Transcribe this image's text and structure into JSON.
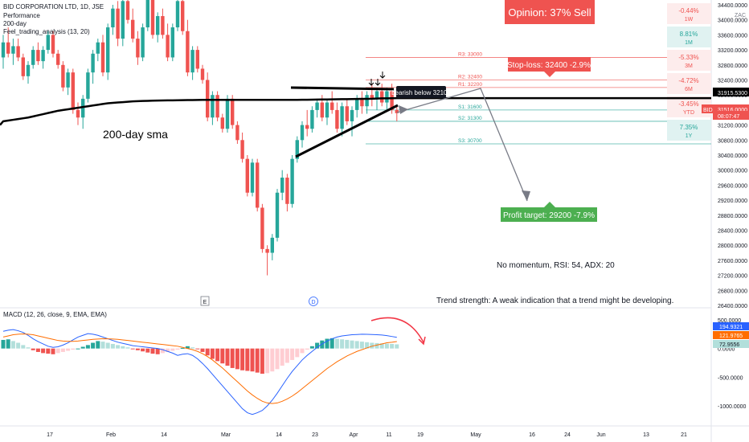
{
  "legend": {
    "symbol": "BID CORPORATION LTD, 1D, JSE",
    "items": [
      "Performance",
      "200-day",
      "Feel_trading_analysis (13, 20)"
    ]
  },
  "currency": "ZAC",
  "opinion": "Opinion: 37% Sell",
  "annotations": {
    "sma_label": "200-day sma",
    "stop_loss": "Stop-loss: 32400 -2.9%",
    "profit_target": "Profit target: 29200 -7.9%",
    "momentum": "No momentum, RSI: 54, ADX: 20",
    "trend_strength": "Trend strength: A weak indication that a trend might be developing.",
    "bearish": "bearish below 32100",
    "e_marker": "E",
    "d_marker": "D"
  },
  "levels": [
    {
      "label": "R3: 33000",
      "value": 33000,
      "color": "#ef5350"
    },
    {
      "label": "R2: 32400",
      "value": 32400,
      "color": "#ef5350"
    },
    {
      "label": "R1: 32200",
      "value": 32200,
      "color": "#ef5350"
    },
    {
      "label": "S1: 31600",
      "value": 31600,
      "color": "#26a69a"
    },
    {
      "label": "S2: 31300",
      "value": 31300,
      "color": "#26a69a"
    },
    {
      "label": "S3: 30700",
      "value": 30700,
      "color": "#26a69a"
    }
  ],
  "performance": [
    {
      "value": "-0.44%",
      "period": "1W",
      "positive": false
    },
    {
      "value": "8.81%",
      "period": "1M",
      "positive": true
    },
    {
      "value": "-5.33%",
      "period": "3M",
      "positive": false
    },
    {
      "value": "-4.72%",
      "period": "6M",
      "positive": false
    },
    {
      "value": "-3.45%",
      "period": "YTD",
      "positive": false
    },
    {
      "value": "7.35%",
      "period": "1Y",
      "positive": true
    }
  ],
  "price_labels": [
    {
      "label": "31915.5300",
      "color": "#000000"
    },
    {
      "label": "31516.0000",
      "color": "#ef5350"
    },
    {
      "label": "BID",
      "color": "#ef5350"
    },
    {
      "label": "08:07:47",
      "color": "#ef5350"
    }
  ],
  "macd": {
    "title": "MACD (12, 26, close, 9, EMA, EMA)",
    "labels": [
      {
        "label": "194.9321",
        "color": "#2962ff"
      },
      {
        "label": "121.9765",
        "color": "#ff6d00"
      },
      {
        "label": "72.9556",
        "color": "#b2dfdb"
      }
    ],
    "yaxis": [
      {
        "label": "500.0000",
        "value": 500
      },
      {
        "label": "0.0000",
        "value": 0
      },
      {
        "label": "-500.0000",
        "value": -500
      },
      {
        "label": "-1000.0000",
        "value": -1000
      }
    ]
  },
  "chart_data": {
    "type": "candlestick",
    "price_axis": [
      34400,
      34000,
      33600,
      33200,
      32800,
      32400,
      32000,
      31600,
      31200,
      30800,
      30400,
      30000,
      29600,
      29200,
      28800,
      28400,
      28000,
      27600,
      27200,
      26800,
      26400
    ],
    "price_axis_labels": [
      "34400.0000",
      "34000.0000",
      "33600.0000",
      "33200.0000",
      "32800.0000",
      "32400.0000",
      "32000.0000",
      "31600.0000",
      "31200.0000",
      "30800.0000",
      "30400.0000",
      "30000.0000",
      "29600.0000",
      "29200.0000",
      "28800.0000",
      "28400.0000",
      "28000.0000",
      "27600.0000",
      "27200.0000",
      "26800.0000",
      "26400.0000"
    ],
    "x_ticks": [
      "17",
      "Feb",
      "14",
      "Mar",
      "14",
      "23",
      "Apr",
      "11",
      "19",
      "May",
      "16",
      "24",
      "Jun",
      "13",
      "21"
    ],
    "candles": [
      [
        33000,
        33600,
        32700,
        33400
      ],
      [
        33400,
        33800,
        33000,
        33100
      ],
      [
        33100,
        33500,
        32800,
        33300
      ],
      [
        33300,
        33500,
        32900,
        33000
      ],
      [
        33000,
        33100,
        32400,
        32500
      ],
      [
        32500,
        32900,
        32300,
        32800
      ],
      [
        32800,
        33300,
        32700,
        33200
      ],
      [
        33200,
        33400,
        32800,
        32900
      ],
      [
        32900,
        33300,
        32700,
        33200
      ],
      [
        33200,
        33700,
        33100,
        33600
      ],
      [
        33600,
        33700,
        33000,
        33100
      ],
      [
        33100,
        33200,
        32700,
        32800
      ],
      [
        32800,
        32900,
        32100,
        32200
      ],
      [
        32200,
        32700,
        32000,
        32600
      ],
      [
        32600,
        32700,
        31500,
        31600
      ],
      [
        31600,
        31800,
        31200,
        31400
      ],
      [
        31400,
        32000,
        31100,
        31900
      ],
      [
        31900,
        32700,
        31800,
        32600
      ],
      [
        32600,
        33200,
        32300,
        33100
      ],
      [
        33100,
        33500,
        32900,
        33400
      ],
      [
        33400,
        33600,
        32500,
        32600
      ],
      [
        32600,
        33900,
        32400,
        33800
      ],
      [
        33800,
        34400,
        33600,
        34300
      ],
      [
        34300,
        34500,
        33300,
        33500
      ],
      [
        33500,
        34700,
        33300,
        34500
      ],
      [
        34500,
        34800,
        33900,
        34000
      ],
      [
        34000,
        34300,
        33400,
        33500
      ],
      [
        33500,
        33700,
        32800,
        33000
      ],
      [
        33000,
        33900,
        32900,
        33800
      ],
      [
        33800,
        34700,
        33700,
        34600
      ],
      [
        34600,
        34800,
        33500,
        33600
      ],
      [
        33600,
        34200,
        33400,
        34100
      ],
      [
        34100,
        34300,
        33500,
        33600
      ],
      [
        33600,
        33900,
        32900,
        33000
      ],
      [
        33000,
        33900,
        32900,
        33800
      ],
      [
        33800,
        34600,
        33700,
        34500
      ],
      [
        34500,
        34700,
        33600,
        33700
      ],
      [
        33700,
        34000,
        32500,
        32600
      ],
      [
        32600,
        33300,
        32400,
        33200
      ],
      [
        33200,
        33300,
        32600,
        32700
      ],
      [
        32700,
        32800,
        32300,
        32400
      ],
      [
        32400,
        32600,
        31300,
        31400
      ],
      [
        31400,
        32100,
        31200,
        32000
      ],
      [
        32000,
        32100,
        31300,
        31400
      ],
      [
        31400,
        31500,
        31000,
        31100
      ],
      [
        31100,
        32000,
        31000,
        31900
      ],
      [
        31900,
        32000,
        31100,
        31200
      ],
      [
        31200,
        31300,
        30700,
        30800
      ],
      [
        30800,
        31000,
        30200,
        30300
      ],
      [
        30300,
        30400,
        29300,
        29400
      ],
      [
        29400,
        30300,
        29300,
        30200
      ],
      [
        30200,
        30300,
        28900,
        29000
      ],
      [
        29000,
        29100,
        27800,
        27900
      ],
      [
        27900,
        28000,
        27200,
        27800
      ],
      [
        27800,
        28300,
        27600,
        28200
      ],
      [
        28200,
        29500,
        28100,
        29400
      ],
      [
        29400,
        30000,
        29200,
        29800
      ],
      [
        29800,
        29900,
        28900,
        29100
      ],
      [
        29100,
        30400,
        29000,
        30300
      ],
      [
        30300,
        30900,
        30200,
        30800
      ],
      [
        30800,
        31300,
        30600,
        31200
      ],
      [
        31200,
        31600,
        30900,
        31100
      ],
      [
        31100,
        31700,
        31000,
        31600
      ],
      [
        31600,
        31900,
        31400,
        31800
      ],
      [
        31800,
        32000,
        31300,
        31400
      ],
      [
        31400,
        31900,
        31200,
        31800
      ],
      [
        31800,
        32100,
        31500,
        31600
      ],
      [
        31600,
        31800,
        31000,
        31100
      ],
      [
        31100,
        31800,
        30900,
        31700
      ],
      [
        31700,
        31900,
        31200,
        31300
      ],
      [
        31300,
        31700,
        30900,
        31600
      ],
      [
        31600,
        32000,
        31400,
        31900
      ],
      [
        31900,
        32100,
        31500,
        31700
      ],
      [
        31700,
        32100,
        31500,
        32000
      ],
      [
        32000,
        32300,
        31700,
        31900
      ],
      [
        31900,
        32200,
        31600,
        32100
      ],
      [
        32100,
        32300,
        31700,
        31800
      ],
      [
        31800,
        32200,
        31600,
        32100
      ],
      [
        32100,
        32300,
        31500,
        31600
      ],
      [
        31600,
        31700,
        31300,
        31516
      ]
    ],
    "sma200": [
      31300,
      31320,
      31340,
      31360,
      31380,
      31400,
      31430,
      31460,
      31490,
      31520,
      31550,
      31580,
      31600,
      31620,
      31640,
      31660,
      31680,
      31700,
      31720,
      31740,
      31760,
      31780,
      31790,
      31800,
      31810,
      31820,
      31830,
      31835,
      31840,
      31845,
      31850,
      31852,
      31854,
      31856,
      31858,
      31860,
      31862,
      31864,
      31866,
      31868,
      31870,
      31870,
      31870,
      31870,
      31870,
      31870,
      31870,
      31870,
      31870,
      31870,
      31870,
      31870,
      31870,
      31870,
      31870,
      31870,
      31870,
      31870,
      31870,
      31870,
      31872,
      31874,
      31876,
      31878,
      31880,
      31882,
      31884,
      31886,
      31888,
      31890,
      31892,
      31894,
      31896,
      31898,
      31900,
      31905,
      31910,
      31912,
      31914,
      31915.53
    ],
    "macd_hist": [
      150,
      160,
      130,
      100,
      60,
      20,
      -30,
      -60,
      -80,
      -90,
      -100,
      -80,
      -60,
      -40,
      -20,
      0,
      30,
      60,
      100,
      130,
      120,
      100,
      80,
      60,
      40,
      20,
      -10,
      -30,
      -50,
      -70,
      -90,
      -100,
      -80,
      -60,
      -40,
      -20,
      10,
      40,
      20,
      -10,
      -60,
      -120,
      -180,
      -220,
      -260,
      -300,
      -340,
      -360,
      -380,
      -390,
      -400,
      -420,
      -440,
      -430,
      -400,
      -360,
      -300,
      -250,
      -200,
      -150,
      -80,
      -20,
      40,
      100,
      140,
      170,
      180,
      170,
      160,
      150,
      140,
      130,
      120,
      110,
      100,
      95,
      90,
      85,
      80,
      72.96
    ],
    "macd_line": [
      300,
      320,
      330,
      310,
      280,
      230,
      170,
      120,
      80,
      40,
      20,
      30,
      60,
      100,
      150,
      200,
      230,
      260,
      250,
      230,
      200,
      170,
      140,
      110,
      90,
      70,
      50,
      40,
      30,
      20,
      10,
      0,
      -20,
      -50,
      -80,
      -120,
      -100,
      -90,
      -120,
      -180,
      -260,
      -350,
      -450,
      -550,
      -650,
      -750,
      -850,
      -950,
      -1050,
      -1120,
      -1150,
      -1120,
      -1080,
      -1000,
      -900,
      -780,
      -650,
      -520,
      -400,
      -300,
      -200,
      -120,
      -50,
      20,
      80,
      130,
      170,
      200,
      220,
      230,
      240,
      245,
      250,
      248,
      245,
      240,
      235,
      225,
      210,
      194.93
    ],
    "signal_line": [
      200,
      220,
      240,
      250,
      255,
      250,
      240,
      220,
      200,
      180,
      160,
      140,
      130,
      125,
      125,
      130,
      140,
      150,
      160,
      165,
      170,
      168,
      165,
      160,
      150,
      140,
      130,
      120,
      110,
      100,
      90,
      80,
      70,
      60,
      50,
      40,
      20,
      0,
      -20,
      -50,
      -90,
      -140,
      -200,
      -270,
      -340,
      -420,
      -500,
      -580,
      -660,
      -740,
      -810,
      -870,
      -920,
      -950,
      -960,
      -950,
      -920,
      -880,
      -830,
      -770,
      -700,
      -630,
      -560,
      -490,
      -420,
      -350,
      -290,
      -230,
      -180,
      -130,
      -90,
      -50,
      -20,
      10,
      40,
      60,
      80,
      100,
      110,
      121.98
    ]
  }
}
